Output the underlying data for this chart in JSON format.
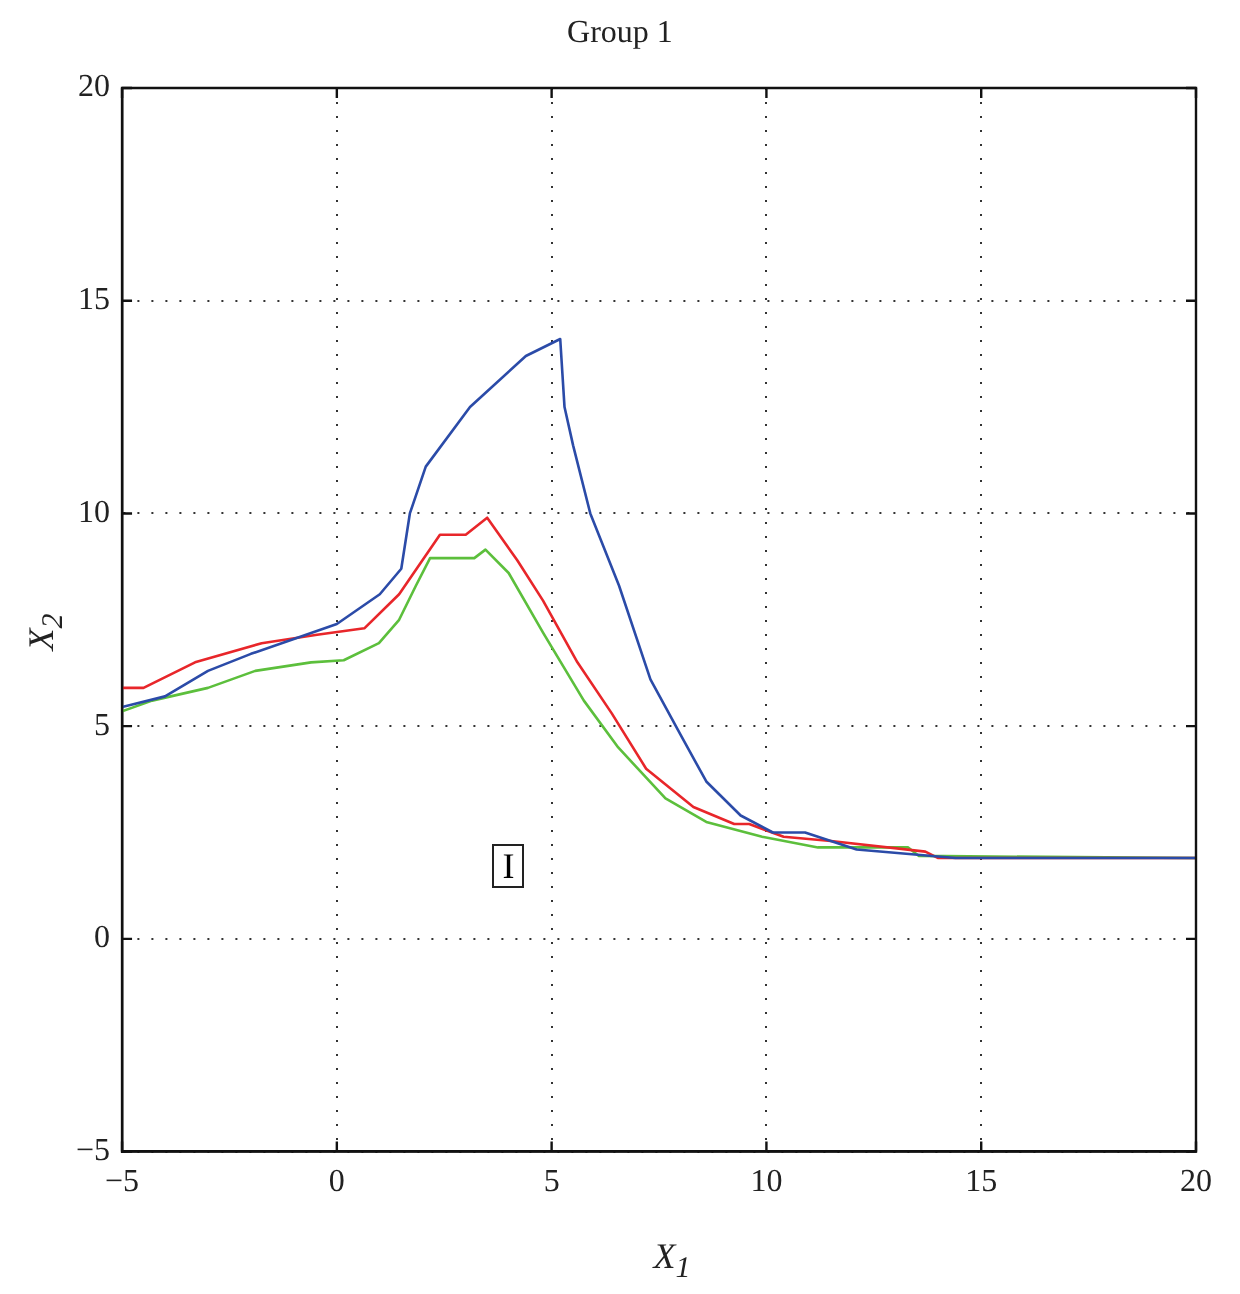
{
  "chart_data": {
    "type": "line",
    "title": "Group 1",
    "xlabel": "X$_{1}$",
    "ylabel": "X$_{2}$",
    "annotations": [
      "I"
    ],
    "xlim": [
      -5,
      20
    ],
    "ylim": [
      -5,
      20
    ],
    "xticks": [
      -5,
      0,
      5,
      10,
      15,
      20
    ],
    "yticks": [
      -5,
      0,
      5,
      10,
      15,
      20
    ],
    "grid": true,
    "legend": false,
    "marker": "none",
    "line_style": "solid",
    "series": [
      {
        "color": "#2b4ba8",
        "x": [
          -5,
          -4,
          -3,
          -2,
          -1,
          0,
          1,
          1.5,
          1.7,
          2.07,
          3.1,
          4.4,
          5.2,
          5.3,
          5.5,
          5.9,
          6.57,
          7.3,
          8.0,
          8.6,
          9.4,
          10.15,
          10.9,
          12.1,
          14.4,
          20
        ],
        "values": [
          5.45,
          5.7,
          6.3,
          6.7,
          7.05,
          7.4,
          8.1,
          8.7,
          10.0,
          11.1,
          12.5,
          13.7,
          14.1,
          12.5,
          11.6,
          10.0,
          8.3,
          6.1,
          4.8,
          3.7,
          2.9,
          2.5,
          2.5,
          2.1,
          1.9,
          1.9
        ]
      },
      {
        "color": "#e8262a",
        "x": [
          -5,
          -4.5,
          -3.3,
          -1.75,
          -0.46,
          0.64,
          1.45,
          2.4,
          3.0,
          3.5,
          4.2,
          4.8,
          5.6,
          6.4,
          7.2,
          8.3,
          9.25,
          9.6,
          10.4,
          11.5,
          13.7,
          14.0,
          20
        ],
        "values": [
          5.9,
          5.9,
          6.5,
          6.95,
          7.15,
          7.3,
          8.1,
          9.5,
          9.5,
          9.9,
          8.9,
          7.95,
          6.5,
          5.3,
          4.0,
          3.1,
          2.7,
          2.7,
          2.4,
          2.3,
          2.05,
          1.9,
          1.9
        ]
      },
      {
        "color": "#5cbf3c",
        "x": [
          -5,
          -4.3,
          -3.0,
          -1.9,
          -0.6,
          0.16,
          0.98,
          1.45,
          1.84,
          2.17,
          3.2,
          3.46,
          4.0,
          4.8,
          5.75,
          6.55,
          7.65,
          8.6,
          9.9,
          11.2,
          13.3,
          13.55,
          20
        ],
        "values": [
          5.35,
          5.6,
          5.9,
          6.3,
          6.5,
          6.55,
          6.95,
          7.5,
          8.3,
          8.95,
          8.95,
          9.15,
          8.6,
          7.2,
          5.6,
          4.5,
          3.3,
          2.75,
          2.4,
          2.15,
          2.15,
          1.95,
          1.9
        ]
      }
    ]
  }
}
